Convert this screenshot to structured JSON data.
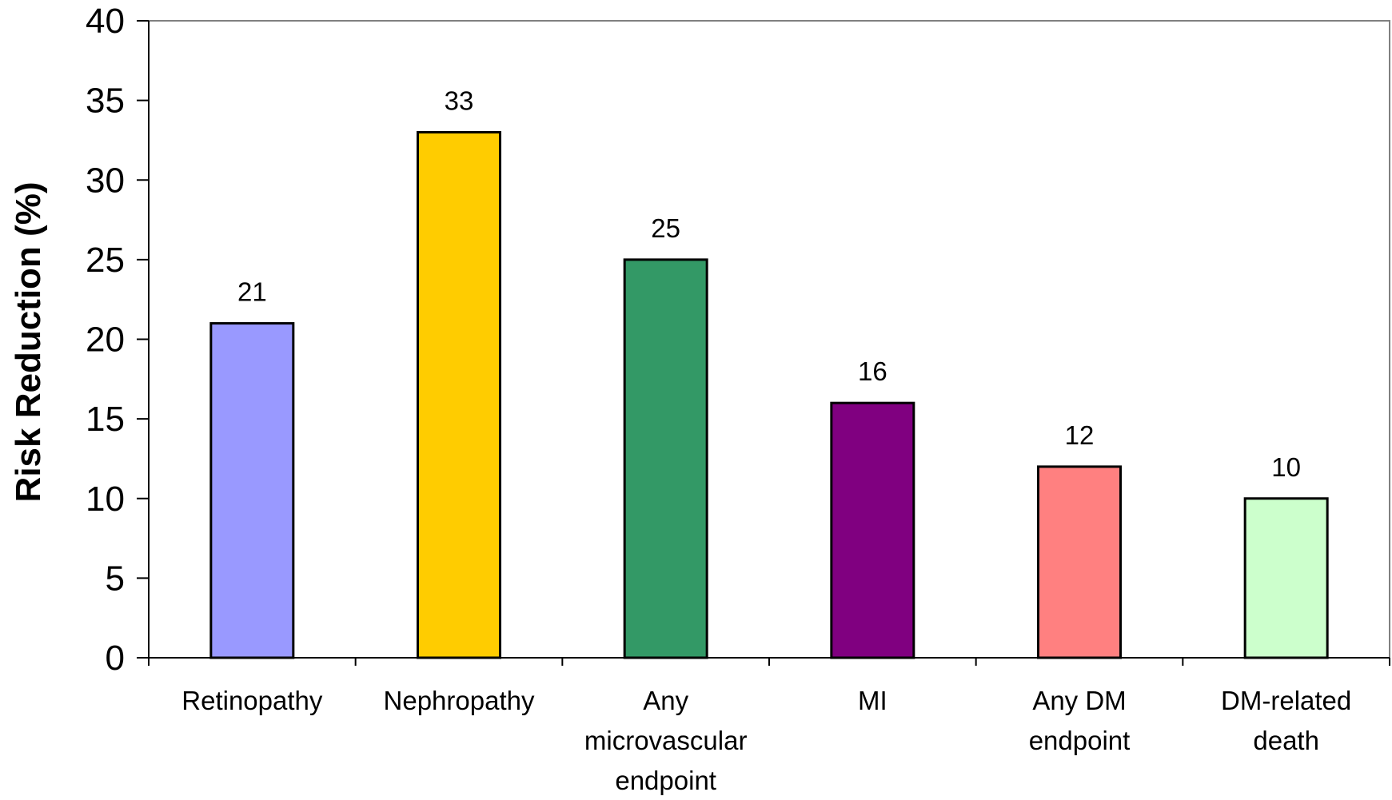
{
  "chart_data": {
    "type": "bar",
    "title": "",
    "xlabel": "",
    "ylabel": "Risk Reduction (%)",
    "ylim": [
      0,
      40
    ],
    "yticks": [
      0,
      5,
      10,
      15,
      20,
      25,
      30,
      35,
      40
    ],
    "grid": false,
    "legend": "none",
    "categories": [
      [
        "Retinopathy"
      ],
      [
        "Nephropathy"
      ],
      [
        "Any",
        "microvascular",
        "endpoint"
      ],
      [
        "MI"
      ],
      [
        "Any DM",
        "endpoint"
      ],
      [
        "DM-related",
        "death"
      ]
    ],
    "values": [
      21,
      33,
      25,
      16,
      12,
      10
    ],
    "data_labels": [
      "21",
      "33",
      "25",
      "16",
      "12",
      "10"
    ],
    "bar_colors": [
      "#9999FF",
      "#FFCC00",
      "#339966",
      "#800080",
      "#FF8080",
      "#CCFFCC"
    ]
  }
}
